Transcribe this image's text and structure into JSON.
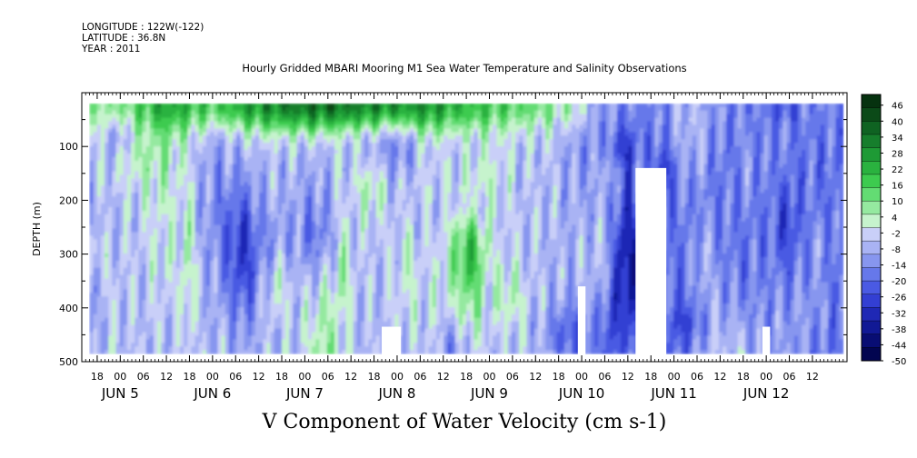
{
  "header": {
    "longitude": "LONGITUDE : 122W(-122)",
    "latitude": "LATITUDE : 36.8N",
    "year": "YEAR : 2011"
  },
  "chart_data": {
    "type": "heatmap",
    "title": "Hourly Gridded MBARI Mooring M1 Sea Water Temperature and Salinity Observations",
    "variable_label": "V Component of Water Velocity (cm s-1)",
    "ylabel": "DEPTH (m)",
    "y_axis": {
      "ylim": [
        500,
        0
      ],
      "ticks": [
        100,
        200,
        300,
        400,
        500
      ],
      "inverted": true,
      "unit": "m"
    },
    "x_axis": {
      "start": "2011-06-04 14:00",
      "end": "2011-06-12 21:00",
      "hour_ticks": [
        "18",
        "00",
        "06",
        "12",
        "18",
        "00",
        "06",
        "12",
        "18",
        "00",
        "06",
        "12",
        "18",
        "00",
        "06",
        "12",
        "18",
        "00",
        "06",
        "12",
        "18",
        "00",
        "06",
        "12",
        "18",
        "00",
        "06",
        "12",
        "18",
        "00",
        "06",
        "12"
      ],
      "day_labels": [
        "JUN 5",
        "JUN 6",
        "JUN 7",
        "JUN 8",
        "JUN 9",
        "JUN 10",
        "JUN 11",
        "JUN 12"
      ]
    },
    "data_extent": {
      "time_start": "2011-06-04 16:00",
      "time_end": "2011-06-12 20:00",
      "depth_min": 20,
      "depth_max": 485
    },
    "colorbar": {
      "min": -50,
      "max": 50,
      "labels": [
        "46",
        "40",
        "34",
        "28",
        "22",
        "16",
        "10",
        "4",
        "-2",
        "-8",
        "-14",
        "-20",
        "-26",
        "-32",
        "-38",
        "-44",
        "-50"
      ],
      "colors": [
        "#06320f",
        "#0b4a18",
        "#0f6322",
        "#167e2c",
        "#1e9a35",
        "#2ab23f",
        "#3dcb4f",
        "#63dc73",
        "#95e9a0",
        "#c6f3cd",
        "#c9cff8",
        "#a9b3f4",
        "#8796ef",
        "#6678ea",
        "#4a5ae3",
        "#333fd3",
        "#1f28b5",
        "#111995",
        "#080d73",
        "#020550"
      ]
    },
    "missing_regions": [
      {
        "time_start": "2011-06-07 20:00",
        "time_end": "2011-06-08 01:00",
        "depth_start": 435,
        "depth_end": 490
      },
      {
        "time_start": "2011-06-09 23:00",
        "time_end": "2011-06-10 01:00",
        "depth_start": 360,
        "depth_end": 490
      },
      {
        "time_start": "2011-06-10 14:00",
        "time_end": "2011-06-10 22:00",
        "depth_start": 140,
        "depth_end": 490
      },
      {
        "time_start": "2011-06-11 23:00",
        "time_end": "2011-06-12 01:00",
        "depth_start": 435,
        "depth_end": 490
      }
    ],
    "field_summary": "Strong positive (green) velocities concentrated in the upper 60 m from Jun 6 to Jun 9; alternating positive and negative bands at depth; predominantly negative (blue) values Jun 10 to Jun 12."
  }
}
